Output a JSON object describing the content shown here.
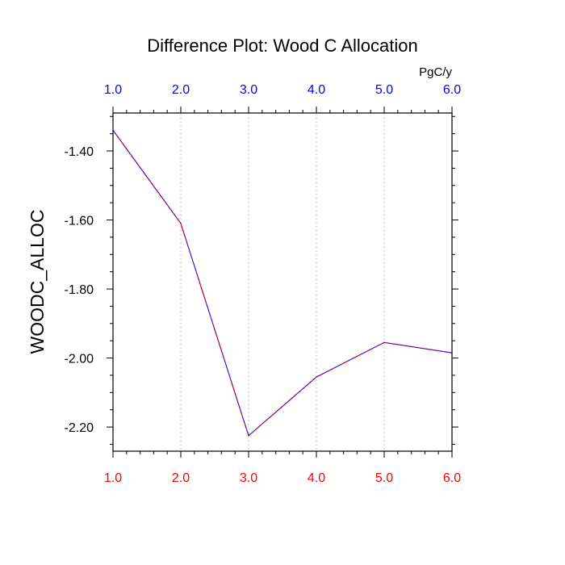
{
  "chart_data": {
    "type": "line",
    "title": "Difference Plot: Wood C Allocation",
    "ylabel": "WOODC_ALLOC",
    "units_label": "PgC/y",
    "x": [
      1.0,
      2.0,
      3.0,
      4.0,
      5.0,
      6.0
    ],
    "series": [
      {
        "values": [
          -1.34,
          -1.61,
          -2.225,
          -2.055,
          -1.955,
          -1.985
        ]
      }
    ],
    "xlim": [
      1.0,
      6.0
    ],
    "ylim": [
      -2.27,
      -1.29
    ],
    "x_ticks": [
      "1.0",
      "2.0",
      "3.0",
      "4.0",
      "5.0",
      "6.0"
    ],
    "x_ticks_top": [
      "1.0",
      "2.0",
      "3.0",
      "4.0",
      "5.0",
      "6.0"
    ],
    "y_ticks": [
      {
        "value": -1.4,
        "label": "-1.40"
      },
      {
        "value": -1.6,
        "label": "-1.60"
      },
      {
        "value": -1.8,
        "label": "-1.80"
      },
      {
        "value": -2.0,
        "label": "-2.00"
      },
      {
        "value": -2.2,
        "label": "-2.20"
      }
    ],
    "grid": "vertical-dotted",
    "colors": {
      "line_primary": "#0000ff",
      "line_secondary": "#ff0000",
      "bottom_tick_labels": "#ff0000",
      "top_tick_labels": "#0000ff",
      "grid": "#bfbfbf"
    }
  }
}
